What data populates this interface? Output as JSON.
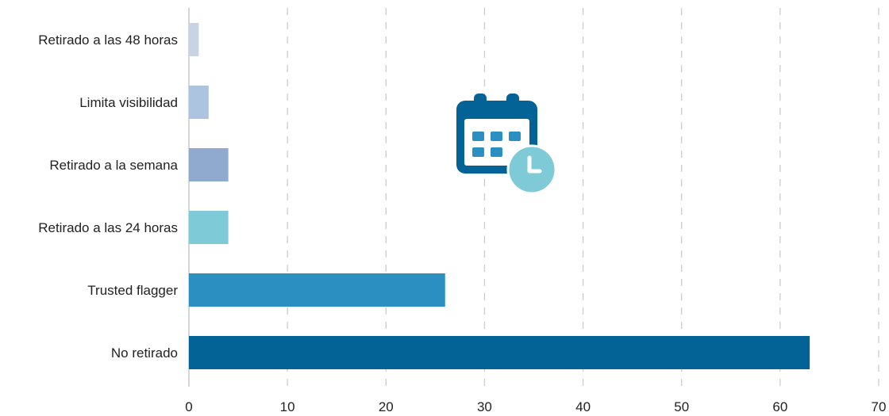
{
  "chart_data": {
    "type": "bar",
    "orientation": "horizontal",
    "categories": [
      "Retirado a las 48 horas",
      "Limita visibilidad",
      "Retirado a la semana",
      "Retirado a las 24 horas",
      "Trusted flagger",
      "No retirado"
    ],
    "values": [
      1,
      2,
      4,
      4,
      26,
      63
    ],
    "bar_colors": [
      "#c9d3e6",
      "#adc4e1",
      "#8fa9cf",
      "#7ecad6",
      "#2b8fc2",
      "#036396"
    ],
    "xlim": [
      0,
      70
    ],
    "xticks": [
      "0",
      "10",
      "20",
      "30",
      "40",
      "50",
      "60",
      "70"
    ],
    "grid": "vertical dashed",
    "title": "",
    "xlabel": "",
    "ylabel": ""
  },
  "decoration": {
    "icon": "calendar-clock-icon",
    "calendar_color": "#036396",
    "clock_color": "#7ecad6",
    "grid_color": "#cccccc",
    "axis_color": "#c8c8c8"
  }
}
